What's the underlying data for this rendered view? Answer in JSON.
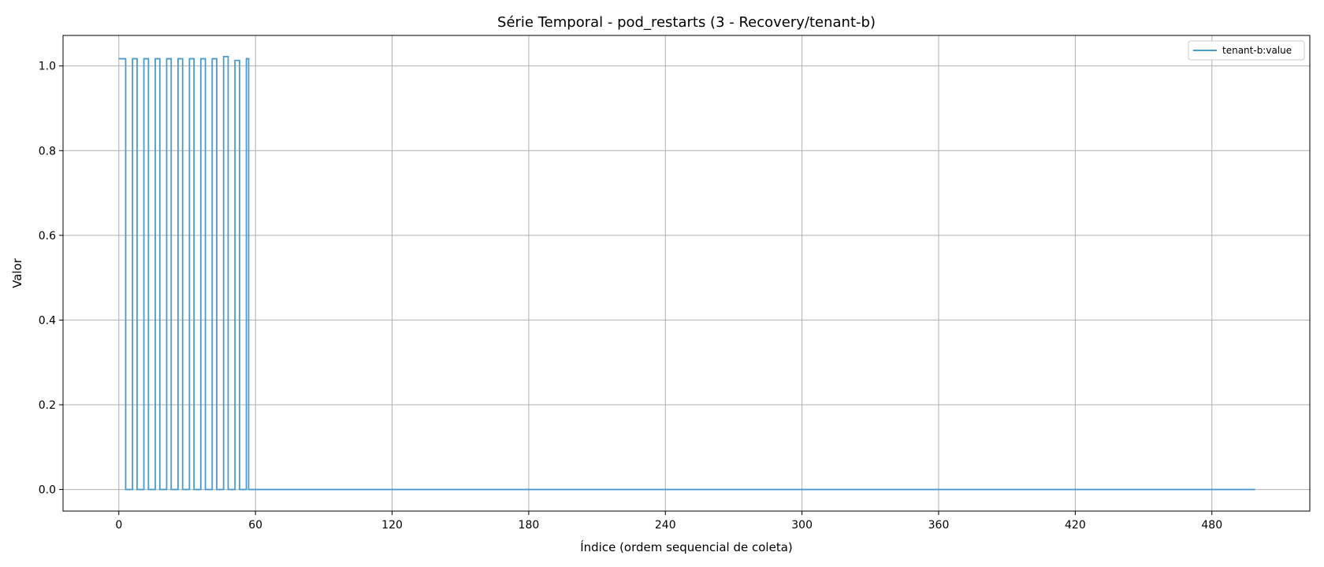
{
  "chart_data": {
    "type": "line",
    "title": "Série Temporal - pod_restarts (3 - Recovery/tenant-b)",
    "xlabel": "Índice (ordem sequencial de coleta)",
    "ylabel": "Valor",
    "xlim": [
      -24.5,
      523
    ],
    "ylim": [
      -0.051,
      1.072
    ],
    "xticks": [
      0,
      60,
      120,
      180,
      240,
      300,
      360,
      420,
      480
    ],
    "yticks": [
      0.0,
      0.2,
      0.4,
      0.6,
      0.8,
      1.0
    ],
    "ytick_labels": [
      "0.0",
      "0.2",
      "0.4",
      "0.6",
      "0.8",
      "1.0"
    ],
    "grid": true,
    "legend_position": "top-right",
    "line_style": "steps-post",
    "series": [
      {
        "name": "tenant-b:value",
        "color": "#4a9bd0",
        "x": [
          0,
          1,
          2,
          3,
          5,
          6,
          7,
          8,
          10,
          11,
          12,
          13,
          15,
          16,
          17,
          18,
          20,
          21,
          22,
          23,
          25,
          26,
          27,
          28,
          30,
          31,
          32,
          33,
          35,
          36,
          37,
          38,
          40,
          41,
          42,
          43,
          45,
          46,
          47,
          48,
          50,
          51,
          52,
          53,
          55,
          56,
          57,
          60,
          120,
          180,
          240,
          300,
          360,
          420,
          480,
          499
        ],
        "y": [
          1.017,
          1.017,
          1.017,
          0,
          0,
          1.017,
          1.017,
          0,
          0,
          1.017,
          1.017,
          0,
          0,
          1.017,
          1.017,
          0,
          0,
          1.017,
          1.017,
          0,
          0,
          1.017,
          1.017,
          0,
          0,
          1.017,
          1.017,
          0,
          0,
          1.017,
          1.017,
          0,
          0,
          1.017,
          1.017,
          0,
          0,
          1.022,
          1.022,
          0,
          0,
          1.013,
          1.013,
          0,
          0,
          1.017,
          0,
          0,
          0,
          0,
          0,
          0,
          0,
          0,
          0,
          0
        ]
      }
    ]
  }
}
